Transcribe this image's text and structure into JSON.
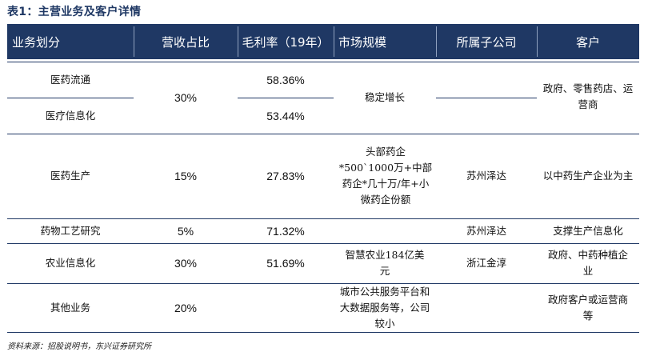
{
  "title": "表1：主营业务及客户详情",
  "headers": [
    "业务划分",
    "营收占比",
    "毛利率（19年）",
    "市场规模",
    "所属子公司",
    "客户"
  ],
  "rows": {
    "r1": {
      "business": "医药流通",
      "margin": "58.36%"
    },
    "r2": {
      "business": "医疗信息化",
      "margin": "53.44%"
    },
    "r12": {
      "share": "30%",
      "market": "稳定增长",
      "customer": "政府、零售药店、运营商"
    },
    "r3": {
      "business": "医药生产",
      "share": "15%",
      "margin": "27.83%",
      "market": "头部药企*500`1000万+中部药企*几十万/年+小微药企份额",
      "subsidiary": "苏州泽达",
      "customer": "以中药生产企业为主"
    },
    "r4": {
      "business": "药物工艺研究",
      "share": "5%",
      "margin": "71.32%",
      "market": "",
      "subsidiary": "苏州泽达",
      "customer": "支撑生产信息化"
    },
    "r5": {
      "business": "农业信息化",
      "share": "30%",
      "margin": "51.69%",
      "market": "智慧农业184亿美元",
      "subsidiary": "浙江金淳",
      "customer": "政府、中药种植企业"
    },
    "r6": {
      "business": "其他业务",
      "share": "20%",
      "margin": "",
      "market": "城市公共服务平台和大数据服务等，公司较小",
      "subsidiary": "",
      "customer": "政府客户或运营商等"
    }
  },
  "source": "资料来源：招股说明书，东兴证券研究所"
}
